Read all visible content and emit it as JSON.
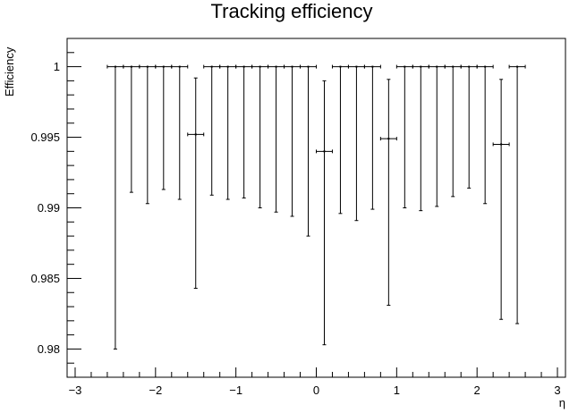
{
  "chart_data": {
    "type": "scatter",
    "title": "Tracking efficiency",
    "xlabel": "η",
    "ylabel": "Efficiency",
    "xlim": [
      -3.1,
      3.1
    ],
    "ylim": [
      0.978,
      1.002
    ],
    "x_ticks": [
      -3,
      -2,
      -1,
      0,
      1,
      2,
      3
    ],
    "x_tick_labels": [
      "−3",
      "−2",
      "−1",
      "0",
      "1",
      "2",
      "3"
    ],
    "y_ticks": [
      0.98,
      0.985,
      0.99,
      0.995,
      1.0
    ],
    "y_tick_labels": [
      "0.98",
      "0.985",
      "0.99",
      "0.995",
      "1"
    ],
    "grid": false,
    "legend": "none",
    "points": [
      {
        "x": -2.5,
        "xerr": 0.1,
        "y": 1.0,
        "err_low": 0.02,
        "err_high": 0.0
      },
      {
        "x": -2.3,
        "xerr": 0.1,
        "y": 1.0,
        "err_low": 0.0089,
        "err_high": 0.0
      },
      {
        "x": -2.1,
        "xerr": 0.1,
        "y": 1.0,
        "err_low": 0.0097,
        "err_high": 0.0
      },
      {
        "x": -1.9,
        "xerr": 0.1,
        "y": 1.0,
        "err_low": 0.0087,
        "err_high": 0.0
      },
      {
        "x": -1.7,
        "xerr": 0.1,
        "y": 1.0,
        "err_low": 0.0094,
        "err_high": 0.0
      },
      {
        "x": -1.5,
        "xerr": 0.1,
        "y": 0.9952,
        "err_low": 0.0109,
        "err_high": 0.004
      },
      {
        "x": -1.3,
        "xerr": 0.1,
        "y": 1.0,
        "err_low": 0.0091,
        "err_high": 0.0
      },
      {
        "x": -1.1,
        "xerr": 0.1,
        "y": 1.0,
        "err_low": 0.0094,
        "err_high": 0.0
      },
      {
        "x": -0.9,
        "xerr": 0.1,
        "y": 1.0,
        "err_low": 0.0093,
        "err_high": 0.0
      },
      {
        "x": -0.7,
        "xerr": 0.1,
        "y": 1.0,
        "err_low": 0.01,
        "err_high": 0.0
      },
      {
        "x": -0.5,
        "xerr": 0.1,
        "y": 1.0,
        "err_low": 0.0103,
        "err_high": 0.0
      },
      {
        "x": -0.3,
        "xerr": 0.1,
        "y": 1.0,
        "err_low": 0.0106,
        "err_high": 0.0
      },
      {
        "x": -0.1,
        "xerr": 0.1,
        "y": 1.0,
        "err_low": 0.012,
        "err_high": 0.0
      },
      {
        "x": 0.1,
        "xerr": 0.1,
        "y": 0.994,
        "err_low": 0.0137,
        "err_high": 0.005
      },
      {
        "x": 0.3,
        "xerr": 0.1,
        "y": 1.0,
        "err_low": 0.0104,
        "err_high": 0.0
      },
      {
        "x": 0.5,
        "xerr": 0.1,
        "y": 1.0,
        "err_low": 0.0109,
        "err_high": 0.0
      },
      {
        "x": 0.7,
        "xerr": 0.1,
        "y": 1.0,
        "err_low": 0.0101,
        "err_high": 0.0
      },
      {
        "x": 0.9,
        "xerr": 0.1,
        "y": 0.9949,
        "err_low": 0.0118,
        "err_high": 0.0042
      },
      {
        "x": 1.1,
        "xerr": 0.1,
        "y": 1.0,
        "err_low": 0.01,
        "err_high": 0.0
      },
      {
        "x": 1.3,
        "xerr": 0.1,
        "y": 1.0,
        "err_low": 0.0102,
        "err_high": 0.0
      },
      {
        "x": 1.5,
        "xerr": 0.1,
        "y": 1.0,
        "err_low": 0.0099,
        "err_high": 0.0
      },
      {
        "x": 1.7,
        "xerr": 0.1,
        "y": 1.0,
        "err_low": 0.0092,
        "err_high": 0.0
      },
      {
        "x": 1.9,
        "xerr": 0.1,
        "y": 1.0,
        "err_low": 0.0086,
        "err_high": 0.0
      },
      {
        "x": 2.1,
        "xerr": 0.1,
        "y": 1.0,
        "err_low": 0.0097,
        "err_high": 0.0
      },
      {
        "x": 2.3,
        "xerr": 0.1,
        "y": 0.9945,
        "err_low": 0.0124,
        "err_high": 0.0046
      },
      {
        "x": 2.5,
        "xerr": 0.1,
        "y": 1.0,
        "err_low": 0.0182,
        "err_high": 0.0
      }
    ],
    "colors": {
      "marker": "#000000",
      "frame": "#000000",
      "background": "#ffffff"
    }
  }
}
